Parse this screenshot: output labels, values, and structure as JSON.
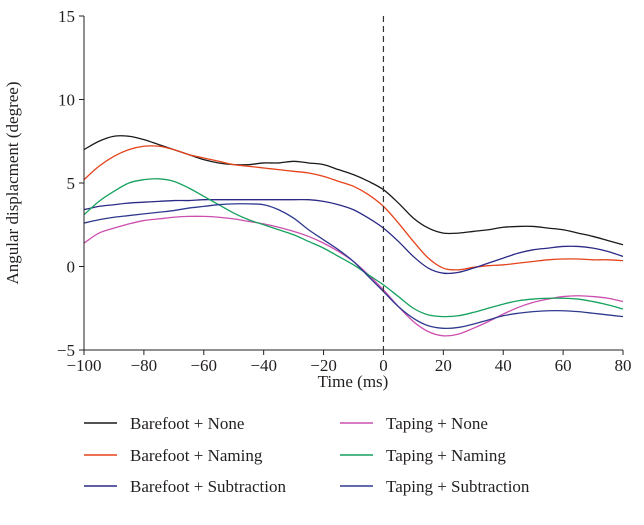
{
  "chart_data": {
    "type": "line",
    "title": "",
    "xlabel": "Time (ms)",
    "ylabel": "Angular displacment (degree)",
    "xlim": [
      -100,
      80
    ],
    "ylim": [
      -5,
      15
    ],
    "x_ticks": [
      -100,
      -80,
      -60,
      -40,
      -20,
      0,
      20,
      40,
      60,
      80
    ],
    "y_ticks": [
      -5,
      0,
      5,
      10,
      15
    ],
    "x_tick_labels": [
      "−100",
      "−80",
      "−60",
      "−40",
      "−20",
      "0",
      "20",
      "40",
      "60",
      "80"
    ],
    "y_tick_labels": [
      "−5",
      "0",
      "5",
      "10",
      "15"
    ],
    "grid": false,
    "reference_line": {
      "x": 0,
      "style": "dashed"
    },
    "legend_position": "bottom",
    "series": [
      {
        "name": "Barefoot + None",
        "color": "#1a1a1a",
        "x": [
          -100,
          -95,
          -90,
          -85,
          -80,
          -75,
          -70,
          -65,
          -60,
          -55,
          -50,
          -45,
          -40,
          -35,
          -30,
          -25,
          -20,
          -15,
          -10,
          -5,
          0,
          5,
          10,
          15,
          20,
          25,
          30,
          35,
          40,
          45,
          50,
          55,
          60,
          65,
          70,
          75,
          80
        ],
        "y": [
          7.0,
          7.5,
          7.8,
          7.8,
          7.6,
          7.3,
          7.0,
          6.7,
          6.4,
          6.2,
          6.1,
          6.1,
          6.2,
          6.2,
          6.3,
          6.2,
          6.1,
          5.8,
          5.5,
          5.1,
          4.6,
          3.8,
          2.9,
          2.3,
          2.0,
          2.0,
          2.1,
          2.2,
          2.35,
          2.4,
          2.4,
          2.3,
          2.2,
          2.0,
          1.8,
          1.55,
          1.3
        ]
      },
      {
        "name": "Barefoot + Naming",
        "color": "#e5431a",
        "x": [
          -100,
          -95,
          -90,
          -85,
          -80,
          -75,
          -70,
          -65,
          -60,
          -55,
          -50,
          -45,
          -40,
          -35,
          -30,
          -25,
          -20,
          -15,
          -10,
          -5,
          0,
          5,
          10,
          15,
          20,
          25,
          30,
          35,
          40,
          45,
          50,
          55,
          60,
          65,
          70,
          75,
          80
        ],
        "y": [
          5.2,
          6.0,
          6.6,
          7.0,
          7.2,
          7.2,
          7.0,
          6.7,
          6.5,
          6.3,
          6.1,
          6.0,
          5.9,
          5.8,
          5.7,
          5.6,
          5.4,
          5.1,
          4.8,
          4.3,
          3.6,
          2.6,
          1.5,
          0.5,
          -0.1,
          -0.2,
          -0.05,
          0.05,
          0.1,
          0.2,
          0.3,
          0.4,
          0.45,
          0.45,
          0.4,
          0.4,
          0.35
        ]
      },
      {
        "name": "Barefoot + Subtraction",
        "color": "#2b2a86",
        "x": [
          -100,
          -95,
          -90,
          -85,
          -80,
          -75,
          -70,
          -65,
          -60,
          -55,
          -50,
          -45,
          -40,
          -35,
          -30,
          -25,
          -20,
          -15,
          -10,
          -5,
          0,
          5,
          10,
          15,
          20,
          25,
          30,
          35,
          40,
          45,
          50,
          55,
          60,
          65,
          70,
          75,
          80
        ],
        "y": [
          3.4,
          3.6,
          3.7,
          3.8,
          3.85,
          3.9,
          3.95,
          3.95,
          4.0,
          4.0,
          4.0,
          4.0,
          4.0,
          4.0,
          4.0,
          4.0,
          3.9,
          3.7,
          3.4,
          2.9,
          2.3,
          1.5,
          0.6,
          -0.1,
          -0.4,
          -0.35,
          -0.1,
          0.2,
          0.5,
          0.8,
          1.0,
          1.1,
          1.2,
          1.2,
          1.1,
          0.9,
          0.6
        ]
      },
      {
        "name": "Taping + None",
        "color": "#cc4fb0",
        "x": [
          -100,
          -95,
          -90,
          -85,
          -80,
          -75,
          -70,
          -65,
          -60,
          -55,
          -50,
          -45,
          -40,
          -35,
          -30,
          -25,
          -20,
          -15,
          -10,
          -5,
          0,
          5,
          10,
          15,
          20,
          25,
          30,
          35,
          40,
          45,
          50,
          55,
          60,
          65,
          70,
          75,
          80
        ],
        "y": [
          1.4,
          2.0,
          2.3,
          2.55,
          2.75,
          2.85,
          2.95,
          3.0,
          3.0,
          2.95,
          2.85,
          2.7,
          2.55,
          2.35,
          2.1,
          1.8,
          1.4,
          0.9,
          0.3,
          -0.5,
          -1.4,
          -2.4,
          -3.3,
          -3.9,
          -4.15,
          -4.05,
          -3.7,
          -3.3,
          -2.85,
          -2.45,
          -2.15,
          -1.95,
          -1.8,
          -1.75,
          -1.8,
          -1.9,
          -2.1
        ]
      },
      {
        "name": "Taping + Naming",
        "color": "#16a15f",
        "x": [
          -100,
          -95,
          -90,
          -85,
          -80,
          -75,
          -70,
          -65,
          -60,
          -55,
          -50,
          -45,
          -40,
          -35,
          -30,
          -25,
          -20,
          -15,
          -10,
          -5,
          0,
          5,
          10,
          15,
          20,
          25,
          30,
          35,
          40,
          45,
          50,
          55,
          60,
          65,
          70,
          75,
          80
        ],
        "y": [
          3.1,
          3.9,
          4.5,
          5.0,
          5.2,
          5.25,
          5.1,
          4.7,
          4.2,
          3.7,
          3.2,
          2.8,
          2.5,
          2.2,
          1.9,
          1.5,
          1.1,
          0.6,
          0.1,
          -0.5,
          -1.1,
          -1.8,
          -2.5,
          -2.9,
          -3.0,
          -2.95,
          -2.75,
          -2.5,
          -2.25,
          -2.05,
          -1.95,
          -1.9,
          -1.9,
          -1.95,
          -2.1,
          -2.3,
          -2.55
        ]
      },
      {
        "name": "Taping + Subtraction",
        "color": "#2f3a8f",
        "x": [
          -100,
          -95,
          -90,
          -85,
          -80,
          -75,
          -70,
          -65,
          -60,
          -55,
          -50,
          -45,
          -40,
          -35,
          -30,
          -25,
          -20,
          -15,
          -10,
          -5,
          0,
          5,
          10,
          15,
          20,
          25,
          30,
          35,
          40,
          45,
          50,
          55,
          60,
          65,
          70,
          75,
          80
        ],
        "y": [
          2.6,
          2.8,
          2.95,
          3.05,
          3.15,
          3.25,
          3.35,
          3.5,
          3.6,
          3.7,
          3.75,
          3.75,
          3.7,
          3.4,
          2.9,
          2.2,
          1.6,
          1.0,
          0.3,
          -0.6,
          -1.5,
          -2.4,
          -3.1,
          -3.55,
          -3.7,
          -3.65,
          -3.45,
          -3.2,
          -2.95,
          -2.8,
          -2.7,
          -2.65,
          -2.65,
          -2.7,
          -2.8,
          -2.9,
          -3.0
        ]
      }
    ]
  }
}
